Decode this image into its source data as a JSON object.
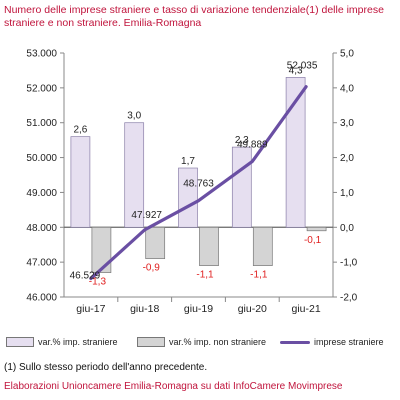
{
  "title": "Numero delle imprese straniere e tasso di variazione tendenziale(1) delle imprese straniere e non straniere. Emilia-Romagna",
  "footnote": "(1) Sullo stesso periodo dell'anno precedente.",
  "source": "Elaborazioni Unioncamere Emilia-Romagna su dati InfoCamere Movimprese",
  "chart_data": {
    "type": "bar+line",
    "categories": [
      "giu-17",
      "giu-18",
      "giu-19",
      "giu-20",
      "giu-21"
    ],
    "left_axis": {
      "min": 46000,
      "max": 53000,
      "ticks": [
        "46.000",
        "47.000",
        "48.000",
        "49.000",
        "50.000",
        "51.000",
        "52.000",
        "53.000"
      ]
    },
    "right_axis": {
      "min": -2.0,
      "max": 5.0,
      "ticks": [
        "-2,0",
        "-1,0",
        "0,0",
        "1,0",
        "2,0",
        "3,0",
        "4,0",
        "5,0"
      ]
    },
    "series": [
      {
        "name": "var.% imp. straniere",
        "kind": "bar",
        "axis": "right",
        "color": "#e6dff0",
        "values": [
          2.6,
          3.0,
          1.7,
          2.3,
          4.3
        ],
        "labels": [
          "2,6",
          "3,0",
          "1,7",
          "2,3",
          "4,3"
        ],
        "label_color": "#222222"
      },
      {
        "name": "var.% imp. non straniere",
        "kind": "bar",
        "axis": "right",
        "color": "#d4d4d4",
        "values": [
          -1.3,
          -0.9,
          -1.1,
          -1.1,
          -0.1
        ],
        "labels": [
          "-1,3",
          "-0,9",
          "-1,1",
          "-1,1",
          "-0,1"
        ],
        "label_color": "#e02020"
      },
      {
        "name": "imprese straniere",
        "kind": "line",
        "axis": "left",
        "color": "#6a4fa3",
        "values": [
          46529,
          47927,
          48763,
          49889,
          52035
        ],
        "labels": [
          "46.529",
          "47.927",
          "48.763",
          "49.889",
          "52.035"
        ]
      }
    ],
    "grid": false,
    "legend_position": "bottom"
  }
}
